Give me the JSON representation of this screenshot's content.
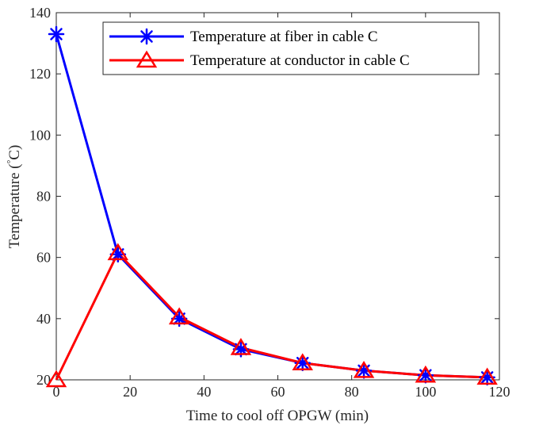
{
  "chart_data": {
    "type": "line",
    "title": "",
    "xlabel": "Time to cool off OPGW (min)",
    "ylabel_prefix": "Temperature (",
    "ylabel_degree": "°",
    "ylabel_unit": "C)",
    "xlim": [
      0,
      120
    ],
    "ylim": [
      20,
      140
    ],
    "xticks": [
      "0",
      "20",
      "40",
      "60",
      "80",
      "100",
      "120"
    ],
    "yticks": [
      "20",
      "40",
      "60",
      "80",
      "100",
      "120",
      "140"
    ],
    "grid": false,
    "legend_position": "top-right",
    "x": [
      0,
      16.7,
      33.3,
      50,
      66.7,
      83.3,
      100,
      116.7
    ],
    "series": [
      {
        "name": "Temperature at fiber in cable C",
        "color": "#0000ff",
        "marker": "asterisk",
        "values": [
          133,
          61,
          40,
          30,
          25.5,
          23,
          21.5,
          20.8
        ]
      },
      {
        "name": "Temperature at conductor in cable C",
        "color": "#ff0000",
        "marker": "triangle",
        "values": [
          20,
          61.5,
          40.5,
          30.5,
          25.5,
          23,
          21.5,
          20.8
        ]
      }
    ]
  }
}
